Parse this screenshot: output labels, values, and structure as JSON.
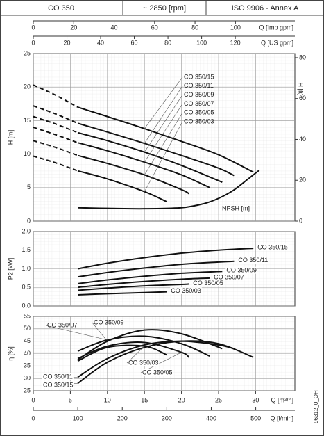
{
  "header": [
    "CO 350",
    "~ 2850 [rpm]",
    "ISO 9906 - Annex A"
  ],
  "code": "96312_0_OH",
  "chart_data": [
    {
      "type": "line",
      "ylabel": "H [m]",
      "y2label": "H [ft]",
      "xlim": [
        0,
        35.3
      ],
      "ylim": [
        0,
        25
      ],
      "yticks": [
        0,
        5,
        10,
        15,
        20,
        25
      ],
      "y2lim": [
        0,
        82.02
      ],
      "y2ticks": [
        0,
        20,
        40,
        60,
        80
      ],
      "top_axes": [
        {
          "label": "Q [Imp gpm]",
          "xlim": [
            0,
            129.4
          ],
          "xticks": [
            0,
            20,
            40,
            60,
            80,
            100
          ]
        },
        {
          "label": "Q [US gpm]",
          "xlim": [
            0,
            155.4
          ],
          "xticks": [
            0,
            20,
            40,
            60,
            80,
            100,
            120
          ]
        }
      ],
      "series": [
        {
          "name": "CO 350/15",
          "color": "#111111",
          "x_dashed": [
            0,
            3,
            6
          ],
          "values_dashed": [
            20.3,
            18.8,
            17.0
          ],
          "x": [
            6,
            10,
            15,
            20,
            25,
            29.7
          ],
          "values": [
            17.0,
            15.6,
            13.8,
            11.9,
            9.9,
            7.3
          ]
        },
        {
          "name": "CO 350/11",
          "color": "#111111",
          "x_dashed": [
            0,
            3,
            6
          ],
          "values_dashed": [
            17.2,
            16.0,
            14.6
          ],
          "x": [
            6,
            10,
            15,
            20,
            25,
            27.1
          ],
          "values": [
            14.6,
            13.3,
            11.6,
            9.8,
            7.9,
            6.8
          ]
        },
        {
          "name": "CO 350/09",
          "color": "#111111",
          "x_dashed": [
            0,
            3,
            6
          ],
          "values_dashed": [
            15.6,
            14.5,
            13.2
          ],
          "x": [
            6,
            10,
            15,
            20,
            25.5
          ],
          "values": [
            13.2,
            12.0,
            10.3,
            8.3,
            5.8
          ]
        },
        {
          "name": "CO 350/07",
          "color": "#111111",
          "x_dashed": [
            0,
            3,
            6
          ],
          "values_dashed": [
            14.0,
            12.9,
            11.7
          ],
          "x": [
            6,
            10,
            15,
            20,
            23.8
          ],
          "values": [
            11.7,
            10.5,
            8.8,
            6.9,
            5.0
          ]
        },
        {
          "name": "CO 350/05",
          "color": "#111111",
          "x_dashed": [
            0,
            3,
            6
          ],
          "values_dashed": [
            12.0,
            11.0,
            9.8
          ],
          "x": [
            6,
            10,
            15,
            20,
            21
          ],
          "values": [
            9.8,
            8.6,
            6.9,
            4.7,
            4.1
          ]
        },
        {
          "name": "CO 350/03",
          "color": "#111111",
          "x_dashed": [
            0,
            3,
            6
          ],
          "values_dashed": [
            9.7,
            8.7,
            7.5
          ],
          "x": [
            6,
            10,
            15,
            18
          ],
          "values": [
            7.5,
            6.3,
            4.4,
            2.9
          ]
        }
      ],
      "npsh": {
        "name": "NPSH [m]",
        "color": "#111111",
        "x": [
          6,
          10,
          15,
          20,
          23,
          25,
          27,
          29,
          30.5
        ],
        "values": [
          2.0,
          1.9,
          1.85,
          2.0,
          2.6,
          3.4,
          4.6,
          6.3,
          7.6
        ]
      }
    },
    {
      "type": "line",
      "ylabel": "P2 [kW]",
      "xlim": [
        0,
        35.3
      ],
      "ylim": [
        0,
        2
      ],
      "yticks": [
        {
          "value": 0,
          "label": "0.0"
        },
        0.5,
        {
          "value": 1,
          "label": "1.0"
        },
        1.5,
        {
          "value": 2,
          "label": "2.0"
        }
      ],
      "series": [
        {
          "name": "CO 350/15",
          "color": "#111111",
          "x": [
            6,
            10,
            15,
            20,
            25,
            29.7
          ],
          "values": [
            1.0,
            1.15,
            1.3,
            1.42,
            1.5,
            1.55
          ]
        },
        {
          "name": "CO 350/11",
          "color": "#111111",
          "x": [
            6,
            10,
            15,
            20,
            25,
            27.1
          ],
          "values": [
            0.78,
            0.9,
            1.02,
            1.12,
            1.18,
            1.2
          ]
        },
        {
          "name": "CO 350/09",
          "color": "#111111",
          "x": [
            6,
            10,
            15,
            20,
            25.5
          ],
          "values": [
            0.6,
            0.7,
            0.8,
            0.88,
            0.93
          ]
        },
        {
          "name": "CO 350/07",
          "color": "#111111",
          "x": [
            6,
            10,
            15,
            20,
            23.8
          ],
          "values": [
            0.5,
            0.58,
            0.66,
            0.72,
            0.75
          ]
        },
        {
          "name": "CO 350/05",
          "color": "#111111",
          "x": [
            6,
            10,
            15,
            20,
            21
          ],
          "values": [
            0.42,
            0.48,
            0.54,
            0.58,
            0.59
          ]
        },
        {
          "name": "CO 350/03",
          "color": "#111111",
          "x": [
            6,
            10,
            15,
            18
          ],
          "values": [
            0.3,
            0.33,
            0.36,
            0.38
          ]
        }
      ]
    },
    {
      "type": "line",
      "ylabel": "η [%]",
      "xlabel": "Q [m³/h]",
      "xlim": [
        0,
        35.3
      ],
      "xticks": [
        0,
        5,
        10,
        15,
        20,
        25,
        30
      ],
      "ylim": [
        25,
        55
      ],
      "yticks": [
        25,
        30,
        35,
        40,
        45,
        50,
        55
      ],
      "bottom_axes": [
        {
          "label": "Q [l/min]",
          "xlim": [
            0,
            588
          ],
          "xticks": [
            0,
            100,
            200,
            300,
            400,
            500
          ]
        }
      ],
      "series": [
        {
          "name": "CO 350/15",
          "color": "#111111",
          "x": [
            6,
            10,
            15,
            20,
            25,
            29.7
          ],
          "values": [
            28,
            36.5,
            42.5,
            45,
            44,
            38.5
          ]
        },
        {
          "name": "CO 350/11",
          "color": "#111111",
          "x": [
            6,
            10,
            15,
            20,
            25,
            27.1
          ],
          "values": [
            30.5,
            38,
            43.5,
            45,
            43.5,
            42
          ]
        },
        {
          "name": "CO 350/09",
          "color": "#111111",
          "x": [
            6,
            10,
            15,
            20,
            25.5
          ],
          "values": [
            37.5,
            45,
            49.5,
            48,
            42
          ]
        },
        {
          "name": "CO 350/07",
          "color": "#111111",
          "x": [
            6,
            10,
            15,
            20,
            23.8
          ],
          "values": [
            41,
            45.5,
            47,
            44,
            39
          ]
        },
        {
          "name": "CO 350/05",
          "color": "#111111",
          "x": [
            6,
            10,
            15,
            20,
            21
          ],
          "values": [
            38,
            43,
            44.5,
            40.5,
            38.5
          ]
        },
        {
          "name": "CO 350/03",
          "color": "#111111",
          "x": [
            6,
            10,
            15,
            18
          ],
          "values": [
            37,
            42.5,
            43,
            39.5
          ]
        }
      ]
    }
  ]
}
